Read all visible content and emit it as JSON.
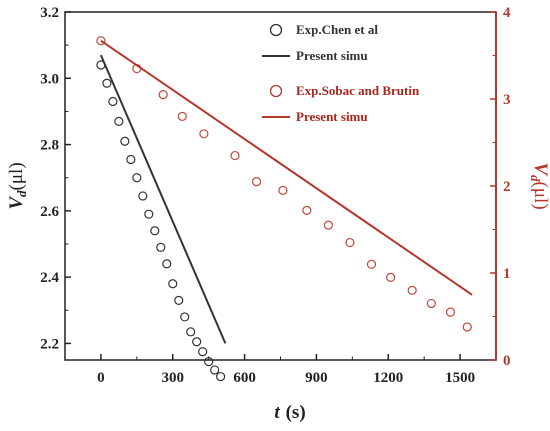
{
  "chart_data": {
    "type": "scatter",
    "x_axis": {
      "label_var": "t",
      "label_unit": "(s)",
      "range": [
        -150,
        1650
      ],
      "ticks": [
        0,
        300,
        600,
        900,
        1200,
        1500
      ]
    },
    "y_left": {
      "label_var": "V",
      "label_sub": "d",
      "label_unit": "(μl)",
      "range": [
        2.15,
        3.2
      ],
      "ticks": [
        2.2,
        2.4,
        2.6,
        2.8,
        3.0,
        3.2
      ],
      "color": "#222222"
    },
    "y_right": {
      "label_var": "V",
      "label_sub": "d",
      "label_unit": "(μl)",
      "range": [
        0,
        4
      ],
      "ticks": [
        0,
        1,
        2,
        3,
        4
      ],
      "color": "#b5372a"
    },
    "series": [
      {
        "name": "Exp.Chen et al",
        "kind": "marker",
        "axis": "left",
        "color": "#333333",
        "x": [
          0,
          25,
          50,
          75,
          100,
          125,
          150,
          175,
          200,
          225,
          250,
          275,
          300,
          325,
          350,
          375,
          400,
          425,
          450,
          475,
          500
        ],
        "y": [
          3.04,
          2.985,
          2.93,
          2.87,
          2.81,
          2.755,
          2.7,
          2.645,
          2.59,
          2.54,
          2.49,
          2.44,
          2.38,
          2.33,
          2.28,
          2.235,
          2.205,
          2.175,
          2.145,
          2.12,
          2.1
        ]
      },
      {
        "name": "Present simu",
        "kind": "line",
        "axis": "left",
        "color": "#333333",
        "x": [
          0,
          520
        ],
        "y": [
          3.07,
          2.2
        ]
      },
      {
        "name": "Exp.Sobac and Brutin",
        "kind": "marker",
        "axis": "right",
        "color": "#c0483a",
        "x": [
          0,
          150,
          260,
          340,
          430,
          560,
          650,
          760,
          860,
          950,
          1040,
          1130,
          1210,
          1300,
          1380,
          1460,
          1530
        ],
        "y": [
          3.67,
          3.35,
          3.05,
          2.8,
          2.6,
          2.35,
          2.05,
          1.95,
          1.72,
          1.55,
          1.35,
          1.1,
          0.95,
          0.8,
          0.65,
          0.55,
          0.38
        ]
      },
      {
        "name": "Present simu",
        "kind": "line",
        "axis": "right",
        "color": "#b5372a",
        "x": [
          0,
          1550
        ],
        "y": [
          3.67,
          0.75
        ]
      }
    ],
    "legend": [
      {
        "label": "Exp.Chen et al",
        "kind": "marker",
        "color": "#333333"
      },
      {
        "label": "Present simu",
        "kind": "line",
        "color": "#333333"
      },
      {
        "label": "Exp.Sobac and Brutin",
        "kind": "marker",
        "color": "#b5372a"
      },
      {
        "label": "Present simu",
        "kind": "line",
        "color": "#b5372a"
      }
    ],
    "legend_placement": "top-right",
    "grid": false
  }
}
